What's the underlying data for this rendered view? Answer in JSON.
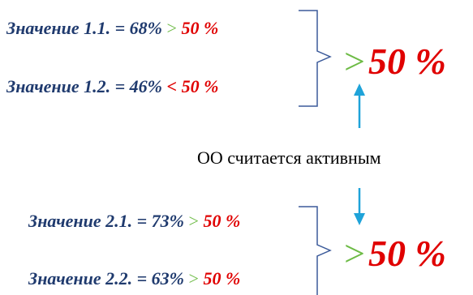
{
  "colors": {
    "value_text": "#1f3a6e",
    "threshold": "#e00000",
    "greater_sign": "#6dbb45",
    "bracket": "#3b5a9a",
    "arrow": "#1fa3d9"
  },
  "groups": [
    {
      "items": [
        {
          "label": "Значение 1.1. = 68%",
          "op": ">",
          "threshold": "50 %"
        },
        {
          "label": "Значение 1.2. = 46%",
          "op": "<",
          "threshold": "50 %"
        }
      ],
      "result_op": ">",
      "result_value": "50 %"
    },
    {
      "items": [
        {
          "label": "Значение 2.1. = 73%",
          "op": ">",
          "threshold": "50 %"
        },
        {
          "label": "Значение 2.2. = 63%",
          "op": ">",
          "threshold": "50 %"
        }
      ],
      "result_op": ">",
      "result_value": "50 %"
    }
  ],
  "conclusion": "ОО считается активным"
}
